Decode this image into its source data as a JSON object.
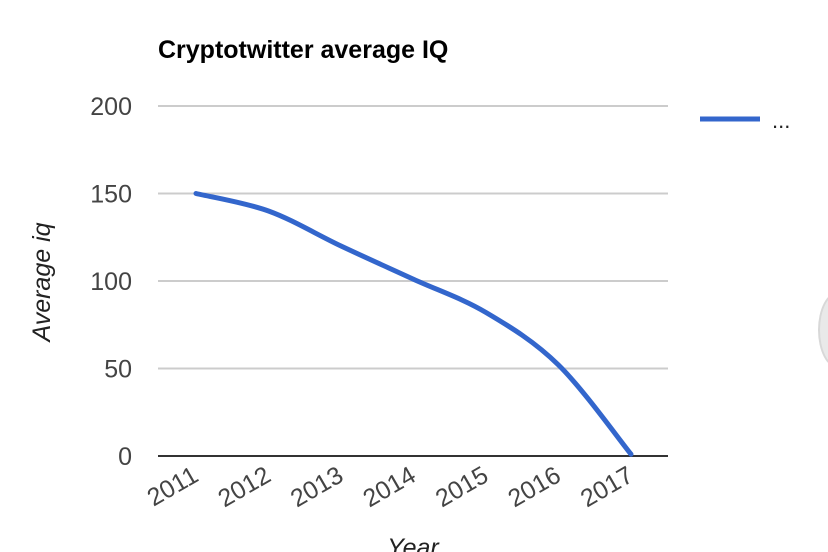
{
  "chart_data": {
    "type": "line",
    "title": "Cryptotwitter average IQ",
    "xlabel": "Year",
    "ylabel": "Average iq",
    "x": [
      "2011",
      "2012",
      "2013",
      "2014",
      "2015",
      "2016",
      "2017"
    ],
    "series": [
      {
        "name": "...",
        "values": [
          150,
          140,
          120,
          101,
          82,
          52,
          1
        ]
      }
    ],
    "yticks": [
      "200",
      "150",
      "100",
      "50",
      "0"
    ],
    "ylim": [
      0,
      200
    ],
    "grid": true,
    "legend_position": "right",
    "line_color": "#3366cc",
    "grid_color": "#cccccc",
    "axis_color": "#333333"
  }
}
